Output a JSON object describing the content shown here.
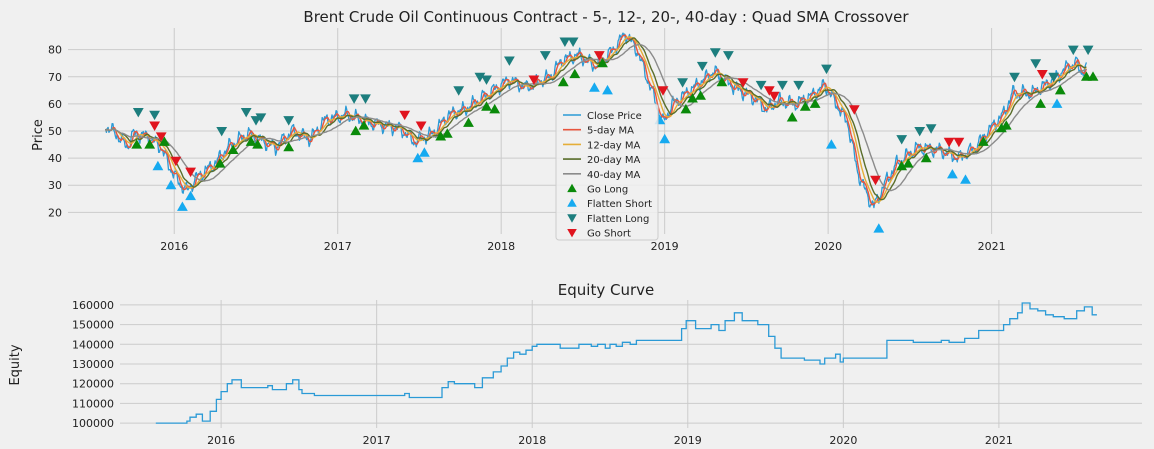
{
  "figure": {
    "background": "#f0f0f0"
  },
  "chart_data": [
    {
      "type": "line",
      "title": "Brent Crude Oil Continuous Contract - 5-, 12-, 20-, 40-day : Quad SMA Crossover",
      "xlabel": "",
      "ylabel": "Price",
      "ylim": [
        12,
        88
      ],
      "yticks": [
        20,
        30,
        40,
        50,
        60,
        70,
        80
      ],
      "xlim": [
        2015.35,
        2021.92
      ],
      "xticks": [
        {
          "v": 2016,
          "label": "2016"
        },
        {
          "v": 2017,
          "label": "2017"
        },
        {
          "v": 2018,
          "label": "2018"
        },
        {
          "v": 2019,
          "label": "2019"
        },
        {
          "v": 2020,
          "label": "2020"
        },
        {
          "v": 2021,
          "label": "2021"
        }
      ],
      "grid": true,
      "legend_position": "center",
      "price_anchors": [
        [
          2015.58,
          52
        ],
        [
          2015.66,
          48
        ],
        [
          2015.71,
          44
        ],
        [
          2015.75,
          49
        ],
        [
          2015.83,
          48
        ],
        [
          2015.92,
          44
        ],
        [
          2015.97,
          37
        ],
        [
          2016.04,
          30
        ],
        [
          2016.08,
          28
        ],
        [
          2016.14,
          33
        ],
        [
          2016.25,
          38
        ],
        [
          2016.33,
          44
        ],
        [
          2016.45,
          49
        ],
        [
          2016.55,
          46
        ],
        [
          2016.62,
          44
        ],
        [
          2016.72,
          50
        ],
        [
          2016.83,
          47
        ],
        [
          2016.92,
          54
        ],
        [
          2017.05,
          56
        ],
        [
          2017.2,
          53
        ],
        [
          2017.38,
          51
        ],
        [
          2017.47,
          46
        ],
        [
          2017.58,
          49
        ],
        [
          2017.68,
          56
        ],
        [
          2017.78,
          58
        ],
        [
          2017.9,
          63
        ],
        [
          2018.05,
          69
        ],
        [
          2018.15,
          66
        ],
        [
          2018.3,
          70
        ],
        [
          2018.37,
          76
        ],
        [
          2018.47,
          78
        ],
        [
          2018.57,
          74
        ],
        [
          2018.67,
          79
        ],
        [
          2018.76,
          86
        ],
        [
          2018.83,
          80
        ],
        [
          2018.92,
          65
        ],
        [
          2018.99,
          53
        ],
        [
          2019.05,
          60
        ],
        [
          2019.18,
          66
        ],
        [
          2019.3,
          72
        ],
        [
          2019.43,
          66
        ],
        [
          2019.55,
          62
        ],
        [
          2019.62,
          58
        ],
        [
          2019.7,
          61
        ],
        [
          2019.8,
          60
        ],
        [
          2019.9,
          63
        ],
        [
          2019.98,
          67
        ],
        [
          2020.05,
          60
        ],
        [
          2020.12,
          53
        ],
        [
          2020.18,
          35
        ],
        [
          2020.24,
          26
        ],
        [
          2020.28,
          22
        ],
        [
          2020.35,
          31
        ],
        [
          2020.42,
          38
        ],
        [
          2020.55,
          44
        ],
        [
          2020.68,
          43
        ],
        [
          2020.8,
          40
        ],
        [
          2020.9,
          44
        ],
        [
          2020.98,
          50
        ],
        [
          2021.07,
          56
        ],
        [
          2021.13,
          64
        ],
        [
          2021.25,
          64
        ],
        [
          2021.38,
          69
        ],
        [
          2021.47,
          74
        ],
        [
          2021.52,
          75
        ],
        [
          2021.55,
          72
        ],
        [
          2021.58,
          73
        ]
      ],
      "series": [
        {
          "name": "Close Price",
          "color": "#2b9ad6",
          "window": 1
        },
        {
          "name": "5-day MA",
          "color": "#e8553e",
          "window": 5
        },
        {
          "name": "12-day MA",
          "color": "#e5ae38",
          "window": 12
        },
        {
          "name": "20-day MA",
          "color": "#5a6e2b",
          "window": 20
        },
        {
          "name": "40-day MA",
          "color": "#8b8b8b",
          "window": 40
        }
      ],
      "signals": [
        {
          "name": "Go Long",
          "color": "#0a8a0a",
          "marker": "triangle-up",
          "points": [
            [
              2015.77,
              45
            ],
            [
              2015.85,
              45
            ],
            [
              2015.94,
              46
            ],
            [
              2016.28,
              38
            ],
            [
              2016.36,
              43
            ],
            [
              2016.47,
              46
            ],
            [
              2016.51,
              45
            ],
            [
              2016.7,
              44
            ],
            [
              2017.11,
              50
            ],
            [
              2017.16,
              52
            ],
            [
              2017.63,
              48
            ],
            [
              2017.67,
              49
            ],
            [
              2017.8,
              53
            ],
            [
              2017.91,
              59
            ],
            [
              2017.96,
              58
            ],
            [
              2018.38,
              68
            ],
            [
              2018.45,
              71
            ],
            [
              2018.62,
              75
            ],
            [
              2019.13,
              58
            ],
            [
              2019.17,
              62
            ],
            [
              2019.22,
              63
            ],
            [
              2019.35,
              68
            ],
            [
              2019.78,
              55
            ],
            [
              2019.86,
              59
            ],
            [
              2019.92,
              60
            ],
            [
              2020.45,
              37
            ],
            [
              2020.49,
              38
            ],
            [
              2020.6,
              40
            ],
            [
              2020.95,
              46
            ],
            [
              2021.06,
              51
            ],
            [
              2021.09,
              52
            ],
            [
              2021.3,
              60
            ],
            [
              2021.42,
              65
            ],
            [
              2021.58,
              70
            ],
            [
              2021.62,
              70
            ]
          ]
        },
        {
          "name": "Flatten Short",
          "color": "#16aaf0",
          "marker": "triangle-up",
          "points": [
            [
              2015.9,
              37
            ],
            [
              2015.98,
              30
            ],
            [
              2016.05,
              22
            ],
            [
              2016.1,
              26
            ],
            [
              2017.49,
              40
            ],
            [
              2017.53,
              42
            ],
            [
              2018.57,
              66
            ],
            [
              2018.65,
              65
            ],
            [
              2018.97,
              54
            ],
            [
              2019.0,
              47
            ],
            [
              2020.02,
              45
            ],
            [
              2020.31,
              14
            ],
            [
              2020.76,
              34
            ],
            [
              2020.84,
              32
            ],
            [
              2021.4,
              60
            ]
          ]
        },
        {
          "name": "Flatten Long",
          "color": "#1d7e7e",
          "marker": "triangle-down",
          "points": [
            [
              2015.78,
              57
            ],
            [
              2015.88,
              56
            ],
            [
              2016.29,
              50
            ],
            [
              2016.44,
              57
            ],
            [
              2016.5,
              54
            ],
            [
              2016.53,
              55
            ],
            [
              2016.7,
              54
            ],
            [
              2017.1,
              62
            ],
            [
              2017.17,
              62
            ],
            [
              2017.74,
              65
            ],
            [
              2017.87,
              70
            ],
            [
              2017.91,
              69
            ],
            [
              2018.05,
              76
            ],
            [
              2018.27,
              78
            ],
            [
              2018.39,
              83
            ],
            [
              2018.44,
              83
            ],
            [
              2019.11,
              68
            ],
            [
              2019.23,
              74
            ],
            [
              2019.31,
              79
            ],
            [
              2019.39,
              78
            ],
            [
              2019.59,
              67
            ],
            [
              2019.72,
              67
            ],
            [
              2019.82,
              67
            ],
            [
              2019.99,
              73
            ],
            [
              2020.45,
              47
            ],
            [
              2020.56,
              50
            ],
            [
              2020.63,
              51
            ],
            [
              2021.14,
              70
            ],
            [
              2021.27,
              75
            ],
            [
              2021.38,
              70
            ],
            [
              2021.5,
              80
            ],
            [
              2021.59,
              80
            ]
          ]
        },
        {
          "name": "Go Short",
          "color": "#e0141e",
          "marker": "triangle-down",
          "points": [
            [
              2015.88,
              52
            ],
            [
              2015.92,
              48
            ],
            [
              2016.01,
              39
            ],
            [
              2016.1,
              35
            ],
            [
              2017.41,
              56
            ],
            [
              2017.51,
              52
            ],
            [
              2018.2,
              69
            ],
            [
              2018.6,
              78
            ],
            [
              2018.99,
              65
            ],
            [
              2019.48,
              68
            ],
            [
              2019.64,
              65
            ],
            [
              2019.67,
              63
            ],
            [
              2020.16,
              58
            ],
            [
              2020.29,
              32
            ],
            [
              2020.74,
              46
            ],
            [
              2020.8,
              46
            ],
            [
              2021.31,
              71
            ]
          ]
        }
      ]
    },
    {
      "type": "line",
      "title": "Equity Curve",
      "xlabel": "",
      "ylabel": "Equity",
      "ylim": [
        97500,
        162500
      ],
      "yticks": [
        100000,
        110000,
        120000,
        130000,
        140000,
        150000,
        160000
      ],
      "ytick_labels": [
        "100000",
        "110000",
        "120000",
        "130000",
        "140000",
        "150000",
        "160000"
      ],
      "xlim": [
        2015.35,
        2021.92
      ],
      "xticks": [
        {
          "v": 2016,
          "label": "2016"
        },
        {
          "v": 2017,
          "label": "2017"
        },
        {
          "v": 2018,
          "label": "2018"
        },
        {
          "v": 2019,
          "label": "2019"
        },
        {
          "v": 2020,
          "label": "2020"
        },
        {
          "v": 2021,
          "label": "2021"
        }
      ],
      "grid": true,
      "series": [
        {
          "name": "",
          "color": "#2b9ad6",
          "steps": [
            [
              2015.58,
              100000
            ],
            [
              2015.78,
              101000
            ],
            [
              2015.8,
              103000
            ],
            [
              2015.84,
              104500
            ],
            [
              2015.88,
              101000
            ],
            [
              2015.93,
              106000
            ],
            [
              2015.97,
              112000
            ],
            [
              2016.0,
              116000
            ],
            [
              2016.04,
              120000
            ],
            [
              2016.07,
              122000
            ],
            [
              2016.13,
              118000
            ],
            [
              2016.27,
              118000
            ],
            [
              2016.3,
              119000
            ],
            [
              2016.33,
              117000
            ],
            [
              2016.42,
              120000
            ],
            [
              2016.46,
              122000
            ],
            [
              2016.5,
              117000
            ],
            [
              2016.52,
              115000
            ],
            [
              2016.6,
              114000
            ],
            [
              2017.1,
              114000
            ],
            [
              2017.18,
              115000
            ],
            [
              2017.21,
              113000
            ],
            [
              2017.38,
              113000
            ],
            [
              2017.42,
              118000
            ],
            [
              2017.46,
              121000
            ],
            [
              2017.5,
              120000
            ],
            [
              2017.63,
              118000
            ],
            [
              2017.68,
              123000
            ],
            [
              2017.75,
              126000
            ],
            [
              2017.8,
              129000
            ],
            [
              2017.84,
              133000
            ],
            [
              2017.88,
              136000
            ],
            [
              2017.92,
              135000
            ],
            [
              2017.96,
              137000
            ],
            [
              2018.0,
              139000
            ],
            [
              2018.03,
              140000
            ],
            [
              2018.18,
              138000
            ],
            [
              2018.27,
              138000
            ],
            [
              2018.3,
              140000
            ],
            [
              2018.38,
              139000
            ],
            [
              2018.42,
              140000
            ],
            [
              2018.47,
              138000
            ],
            [
              2018.5,
              140000
            ],
            [
              2018.54,
              139000
            ],
            [
              2018.58,
              141000
            ],
            [
              2018.63,
              140000
            ],
            [
              2018.67,
              142000
            ],
            [
              2018.96,
              148000
            ],
            [
              2018.99,
              152000
            ],
            [
              2019.05,
              148000
            ],
            [
              2019.15,
              150000
            ],
            [
              2019.2,
              147000
            ],
            [
              2019.24,
              152000
            ],
            [
              2019.3,
              156000
            ],
            [
              2019.35,
              152000
            ],
            [
              2019.45,
              150000
            ],
            [
              2019.52,
              144000
            ],
            [
              2019.56,
              138000
            ],
            [
              2019.6,
              133000
            ],
            [
              2019.75,
              132000
            ],
            [
              2019.85,
              130000
            ],
            [
              2019.88,
              133000
            ],
            [
              2019.95,
              135000
            ],
            [
              2019.98,
              131000
            ],
            [
              2020.0,
              133000
            ],
            [
              2020.28,
              142000
            ],
            [
              2020.45,
              141000
            ],
            [
              2020.55,
              141000
            ],
            [
              2020.63,
              142000
            ],
            [
              2020.68,
              141000
            ],
            [
              2020.78,
              143000
            ],
            [
              2020.87,
              147000
            ],
            [
              2021.0,
              147000
            ],
            [
              2021.03,
              150000
            ],
            [
              2021.07,
              153000
            ],
            [
              2021.12,
              156000
            ],
            [
              2021.15,
              161000
            ],
            [
              2021.2,
              158000
            ],
            [
              2021.25,
              157000
            ],
            [
              2021.3,
              155000
            ],
            [
              2021.35,
              154000
            ],
            [
              2021.42,
              153000
            ],
            [
              2021.47,
              153000
            ],
            [
              2021.5,
              157000
            ],
            [
              2021.55,
              159000
            ],
            [
              2021.6,
              155000
            ],
            [
              2021.63,
              155000
            ]
          ]
        }
      ]
    }
  ]
}
